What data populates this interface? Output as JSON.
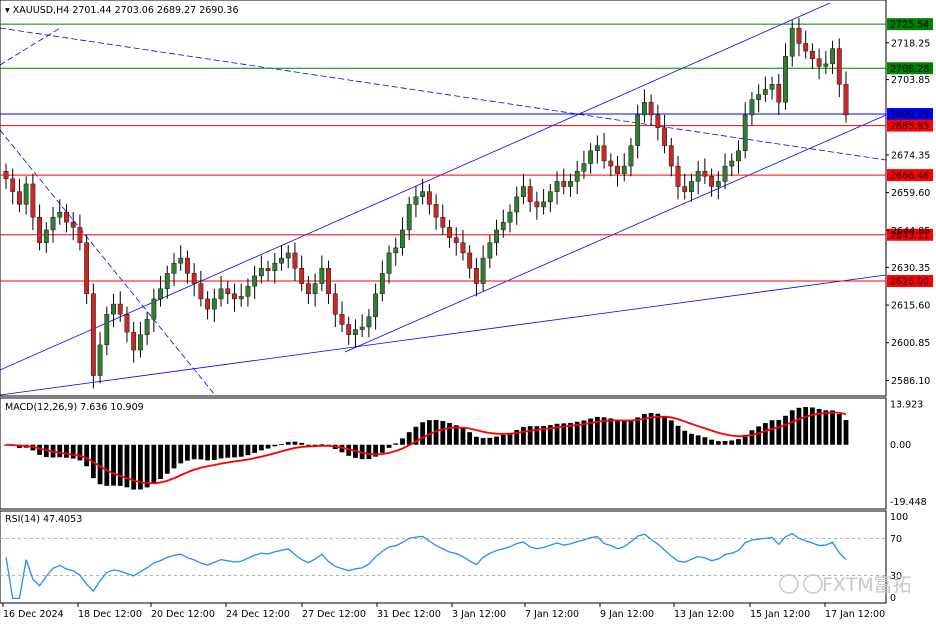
{
  "chart_data": {
    "type": "candlestick",
    "title": "XAUUSD,H4",
    "ohlc_label": "2701.44 2703.06 2689.27 2690.36",
    "last_price": 2690.36,
    "ylim": [
      2580,
      2735
    ],
    "y_ticks": [
      2718.25,
      2703.85,
      2674.35,
      2659.6,
      2644.85,
      2630.35,
      2615.6,
      2600.85,
      2586.1
    ],
    "x_ticks": [
      "16 Dec 2024",
      "18 Dec 12:00",
      "20 Dec 12:00",
      "24 Dec 12:00",
      "27 Dec 12:00",
      "31 Dec 12:00",
      "3 Jan 12:00",
      "7 Jan 12:00",
      "9 Jan 12:00",
      "13 Jan 12:00",
      "15 Jan 12:00",
      "17 Jan 12:00"
    ],
    "levels": [
      {
        "price": 2725.54,
        "label": "2725.54",
        "color": "#008000"
      },
      {
        "price": 2708.28,
        "label": "2708.28",
        "color": "#008000"
      },
      {
        "price": 2690.36,
        "label": "2690.36",
        "color": "#0000ff"
      },
      {
        "price": 2685.85,
        "label": "2685.85",
        "color": "#ff0000"
      },
      {
        "price": 2666.46,
        "label": "2666.46",
        "color": "#ff0000"
      },
      {
        "price": 2643.11,
        "label": "2643.11",
        "color": "#ff0000"
      },
      {
        "price": 2625.0,
        "label": "2625.00",
        "color": "#ff0000"
      }
    ],
    "closes": [
      2665,
      2660,
      2655,
      2663,
      2650,
      2640,
      2645,
      2650,
      2652,
      2648,
      2646,
      2640,
      2620,
      2588,
      2600,
      2612,
      2616,
      2612,
      2605,
      2598,
      2604,
      2610,
      2618,
      2622,
      2628,
      2632,
      2634,
      2628,
      2624,
      2618,
      2614,
      2618,
      2622,
      2620,
      2618,
      2619,
      2623,
      2627,
      2630,
      2629,
      2632,
      2634,
      2636,
      2630,
      2624,
      2620,
      2624,
      2630,
      2620,
      2612,
      2608,
      2604,
      2606,
      2607,
      2611,
      2620,
      2628,
      2636,
      2638,
      2645,
      2655,
      2658,
      2660,
      2655,
      2650,
      2646,
      2642,
      2640,
      2636,
      2630,
      2624,
      2634,
      2640,
      2645,
      2648,
      2652,
      2658,
      2662,
      2656,
      2654,
      2656,
      2660,
      2664,
      2662,
      2664,
      2668,
      2671,
      2676,
      2678,
      2672,
      2670,
      2667,
      2670,
      2678,
      2690,
      2695,
      2690,
      2685,
      2678,
      2670,
      2662,
      2660,
      2664,
      2668,
      2666,
      2662,
      2664,
      2670,
      2672,
      2676,
      2690,
      2696,
      2698,
      2700,
      2702,
      2695,
      2713,
      2724,
      2718,
      2715,
      2712,
      2709,
      2710,
      2716,
      2702,
      2690
    ],
    "macd": {
      "label": "MACD(12,26,9)",
      "main_value": "7.636",
      "signal_value": "10.909",
      "ticks": [
        "13.923",
        "0.00",
        "-19.448"
      ],
      "ylim": [
        -22,
        16
      ]
    },
    "rsi": {
      "label": "RSI(14)",
      "value": "47.4053",
      "ticks": [
        "100",
        "70",
        "30",
        "0"
      ],
      "ylim": [
        0,
        100
      ]
    }
  },
  "watermark": {
    "text": "FXTM富拓"
  },
  "colors": {
    "bull": "#2e7d32",
    "bear": "#c62828",
    "wick": "#000000",
    "channel": "#0000ff",
    "signal": "#ff0000",
    "histogram": "#000000",
    "rsi": "#1e90ff"
  }
}
